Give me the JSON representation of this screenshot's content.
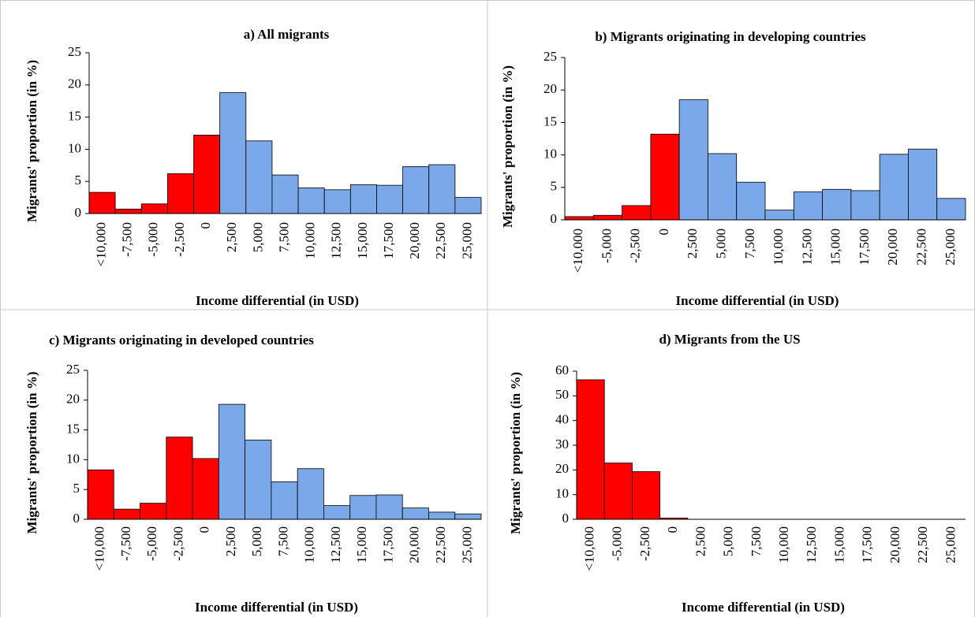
{
  "chart_data": [
    {
      "type": "bar",
      "title": "a) All migrants",
      "ylabel": "Migrants' proportion (in %)",
      "xlabel": "Income differential (in USD)",
      "categories": [
        "<10,000",
        "-7,500",
        "-5,000",
        "-2,500",
        "0",
        "2,500",
        "5,000",
        "7,500",
        "10,000",
        "12,500",
        "15,000",
        "17,500",
        "20,000",
        "22,500",
        "25,000"
      ],
      "values": [
        3.3,
        0.7,
        1.5,
        6.2,
        12.2,
        18.8,
        11.3,
        6.0,
        4.0,
        3.7,
        4.5,
        4.4,
        7.3,
        7.6,
        2.5
      ],
      "colors": [
        "#ff0000",
        "#ff0000",
        "#ff0000",
        "#ff0000",
        "#ff0000",
        "#7aa8e8",
        "#7aa8e8",
        "#7aa8e8",
        "#7aa8e8",
        "#7aa8e8",
        "#7aa8e8",
        "#7aa8e8",
        "#7aa8e8",
        "#7aa8e8",
        "#7aa8e8"
      ],
      "ylim": [
        0,
        25
      ],
      "yticks": [
        0,
        5,
        10,
        15,
        20,
        25
      ]
    },
    {
      "type": "bar",
      "title": "b) Migrants originating in developing countries",
      "ylabel": "Migrants' proportion (in %)",
      "xlabel": "Income differential (in USD)",
      "categories": [
        "<10,000",
        "-5,000",
        "-2,500",
        "0",
        "2,500",
        "5,000",
        "7,500",
        "10,000",
        "12,500",
        "15,000",
        "17,500",
        "20,000",
        "22,500",
        "25,000"
      ],
      "values": [
        0.5,
        0.7,
        2.2,
        13.2,
        18.5,
        10.2,
        5.8,
        1.5,
        4.3,
        4.7,
        4.5,
        10.1,
        10.9,
        3.3
      ],
      "colors": [
        "#ff0000",
        "#ff0000",
        "#ff0000",
        "#ff0000",
        "#7aa8e8",
        "#7aa8e8",
        "#7aa8e8",
        "#7aa8e8",
        "#7aa8e8",
        "#7aa8e8",
        "#7aa8e8",
        "#7aa8e8",
        "#7aa8e8",
        "#7aa8e8"
      ],
      "ylim": [
        0,
        25
      ],
      "yticks": [
        0,
        5,
        10,
        15,
        20,
        25
      ]
    },
    {
      "type": "bar",
      "title": "c) Migrants originating in developed countries",
      "ylabel": "Migrants' proportion (in %)",
      "xlabel": "Income differential (in USD)",
      "categories": [
        "<10,000",
        "-7,500",
        "-5,000",
        "-2,500",
        "0",
        "2,500",
        "5,000",
        "7,500",
        "10,000",
        "12,500",
        "15,000",
        "17,500",
        "20,000",
        "22,500",
        "25,000"
      ],
      "values": [
        8.3,
        1.7,
        2.7,
        13.8,
        10.2,
        19.3,
        13.3,
        6.3,
        8.5,
        2.3,
        4.0,
        4.1,
        1.9,
        1.2,
        0.9
      ],
      "colors": [
        "#ff0000",
        "#ff0000",
        "#ff0000",
        "#ff0000",
        "#ff0000",
        "#7aa8e8",
        "#7aa8e8",
        "#7aa8e8",
        "#7aa8e8",
        "#7aa8e8",
        "#7aa8e8",
        "#7aa8e8",
        "#7aa8e8",
        "#7aa8e8",
        "#7aa8e8"
      ],
      "ylim": [
        0,
        25
      ],
      "yticks": [
        0,
        5,
        10,
        15,
        20,
        25
      ]
    },
    {
      "type": "bar",
      "title": "d) Migrants from the US",
      "ylabel": "Migrants' proportion (in %)",
      "xlabel": "Income differential (in USD)",
      "categories": [
        "<10,000",
        "-5,000",
        "-2,500",
        "0",
        "2,500",
        "5,000",
        "7,500",
        "10,000",
        "12,500",
        "15,000",
        "17,500",
        "20,000",
        "22,500",
        "25,000"
      ],
      "values": [
        56.5,
        22.8,
        19.3,
        0.5,
        0,
        0,
        0,
        0,
        0,
        0,
        0,
        0,
        0,
        0
      ],
      "colors": [
        "#ff0000",
        "#ff0000",
        "#ff0000",
        "#ff0000",
        "#7aa8e8",
        "#7aa8e8",
        "#7aa8e8",
        "#7aa8e8",
        "#7aa8e8",
        "#7aa8e8",
        "#7aa8e8",
        "#7aa8e8",
        "#7aa8e8",
        "#7aa8e8"
      ],
      "ylim": [
        0,
        60
      ],
      "yticks": [
        0,
        10,
        20,
        30,
        40,
        50,
        60
      ]
    }
  ]
}
